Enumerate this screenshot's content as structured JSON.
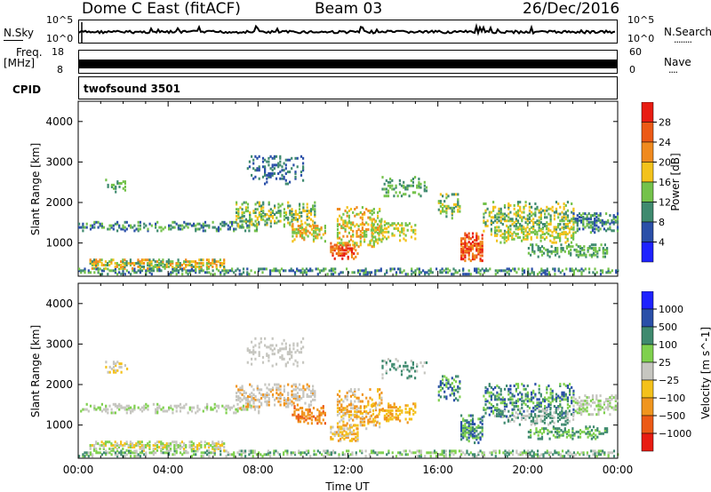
{
  "header": {
    "station": "Dome C East (fitACF)",
    "beam": "Beam 03",
    "date": "26/Dec/2016"
  },
  "nsky_panel": {
    "label": "N.Sky",
    "left_ticks": [
      "10^5",
      "10^0"
    ],
    "right_label": "N.Search",
    "right_ticks": [
      "10^5",
      "10^0"
    ],
    "right_marker": "........"
  },
  "freq_panel": {
    "label_line1": "Freq.",
    "label_line2": "[MHz]",
    "left_ticks": [
      "18",
      "8"
    ],
    "right_label": "Nave",
    "right_ticks": [
      "60",
      "0"
    ],
    "right_marker": "...."
  },
  "cpid_panel": {
    "label": "CPID",
    "value": "twofsound 3501"
  },
  "colors": {
    "power": [
      "#1e22ff",
      "#2a4fa8",
      "#3f8a6f",
      "#74c24b",
      "#f3c21b",
      "#f08a1e",
      "#ec5a16",
      "#e81c12"
    ],
    "velocity": [
      "#e81c12",
      "#ec5a16",
      "#f0951e",
      "#f4c11b",
      "#c6c6c0",
      "#7fd04e",
      "#3f8a6f",
      "#2a4fa8",
      "#1e22ff"
    ]
  },
  "chart_data": [
    {
      "type": "heatmap",
      "name": "power",
      "ylabel": "Slant Range [km]",
      "yticks": [
        "1000",
        "2000",
        "3000",
        "4000"
      ],
      "yrange": [
        180,
        4500
      ],
      "xrange": [
        0,
        24
      ],
      "colorbar_label": "Power [dB]",
      "colorbar_ticks": [
        "4",
        "8",
        "12",
        "16",
        "20",
        "24",
        "28"
      ],
      "colorbar_range": [
        0,
        32
      ]
    },
    {
      "type": "heatmap",
      "name": "velocity",
      "ylabel": "Slant Range [km]",
      "yticks": [
        "1000",
        "2000",
        "3000",
        "4000"
      ],
      "yrange": [
        180,
        4500
      ],
      "xrange": [
        0,
        24
      ],
      "xticks": [
        "00:00",
        "04:00",
        "08:00",
        "12:00",
        "16:00",
        "20:00",
        "00:00"
      ],
      "xlabel": "Time UT",
      "colorbar_label": "Velocity [m s^-1]",
      "colorbar_ticks": [
        "1000",
        "500",
        "100",
        "25",
        "−25",
        "−100",
        "−500",
        "−1000"
      ]
    }
  ]
}
